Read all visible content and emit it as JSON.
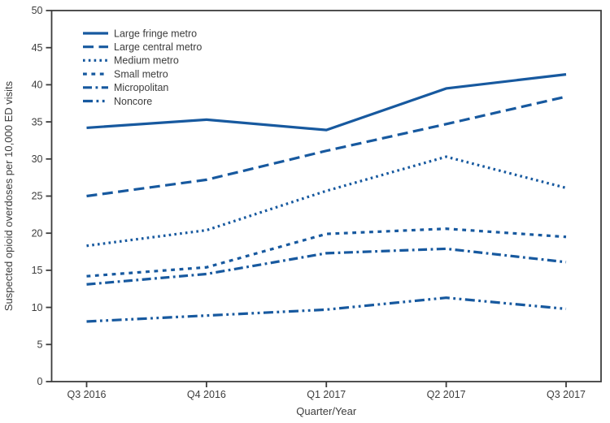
{
  "chart_data": {
    "type": "line",
    "title": "",
    "xlabel": "Quarter/Year",
    "ylabel": "Suspected opioid overdoses per 10,000 ED visits",
    "categories": [
      "Q3 2016",
      "Q4 2016",
      "Q1 2017",
      "Q2 2017",
      "Q3 2017"
    ],
    "ylim": [
      0,
      50
    ],
    "yticks": [
      0,
      5,
      10,
      15,
      20,
      25,
      30,
      35,
      40,
      45,
      50
    ],
    "grid": false,
    "legend_position": "top-left",
    "line_color": "#17599f",
    "axis_color": "#3c3c3c",
    "text_color": "#3d3d3d",
    "series": [
      {
        "name": "Large fringe metro",
        "dash": "solid",
        "values": [
          34.2,
          35.3,
          33.9,
          39.5,
          41.4
        ]
      },
      {
        "name": "Large central metro",
        "dash": "long-dash",
        "values": [
          25.0,
          27.2,
          31.1,
          34.7,
          38.4
        ]
      },
      {
        "name": "Medium metro",
        "dash": "dotted",
        "values": [
          18.3,
          20.4,
          25.7,
          30.3,
          26.1
        ]
      },
      {
        "name": "Small metro",
        "dash": "short-dash",
        "values": [
          14.2,
          15.4,
          19.9,
          20.6,
          19.5
        ]
      },
      {
        "name": "Micropolitan",
        "dash": "dash-dot",
        "values": [
          13.1,
          14.5,
          17.3,
          17.9,
          16.1
        ]
      },
      {
        "name": "Noncore",
        "dash": "dash-dot-dot",
        "values": [
          8.1,
          8.9,
          9.7,
          11.3,
          9.8
        ]
      }
    ]
  }
}
